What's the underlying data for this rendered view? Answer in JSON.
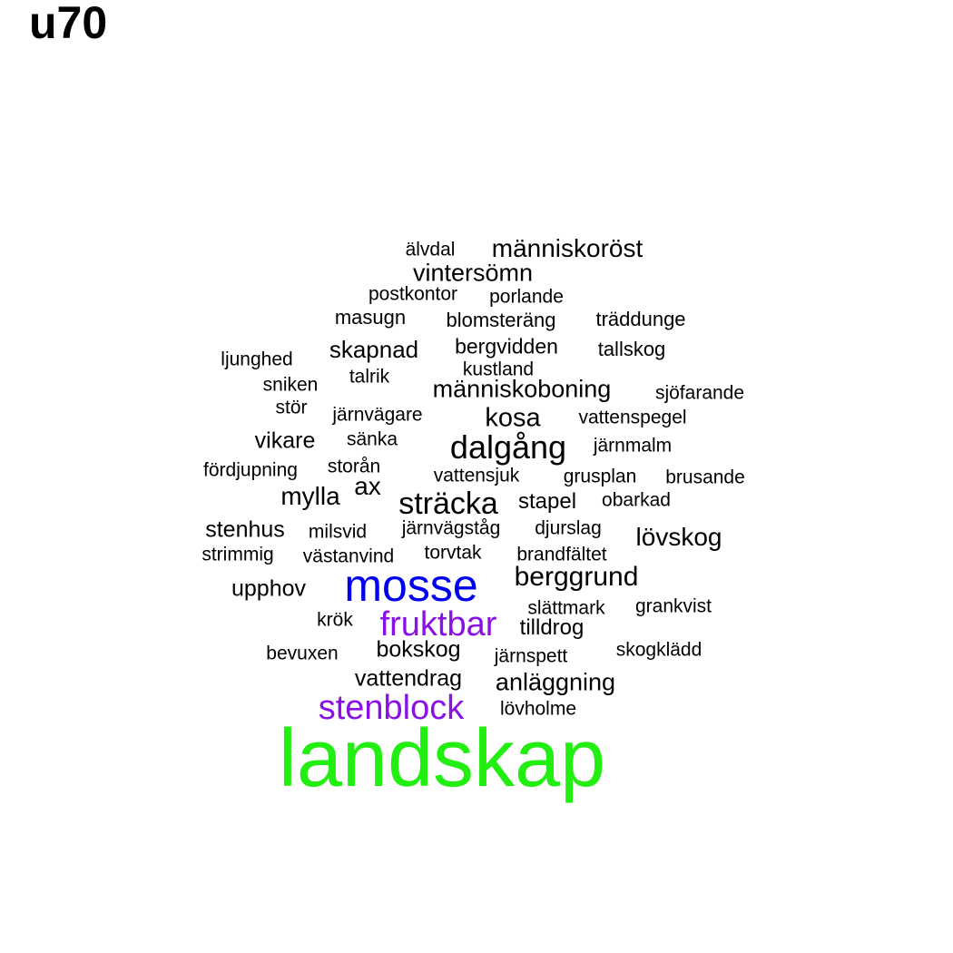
{
  "title": "u70",
  "colors": {
    "default": "#000000",
    "green": "#22ee11",
    "blue": "#0000ee",
    "purple": "#8a11e6"
  },
  "words": [
    {
      "text": "landskap",
      "color": "green"
    },
    {
      "text": "mosse",
      "color": "blue"
    },
    {
      "text": "fruktbar",
      "color": "purple"
    },
    {
      "text": "stenblock",
      "color": "purple"
    },
    {
      "text": "dalgång"
    },
    {
      "text": "sträcka"
    },
    {
      "text": "berggrund"
    },
    {
      "text": "anläggning"
    },
    {
      "text": "mylla"
    },
    {
      "text": "ax"
    },
    {
      "text": "kosa"
    },
    {
      "text": "lövskog"
    },
    {
      "text": "människoröst"
    },
    {
      "text": "vintersömn"
    },
    {
      "text": "skapnad"
    },
    {
      "text": "människoboning"
    },
    {
      "text": "vattendrag"
    },
    {
      "text": "bokskog"
    },
    {
      "text": "stenhus"
    },
    {
      "text": "upphov"
    },
    {
      "text": "vikare"
    },
    {
      "text": "bergvidden"
    },
    {
      "text": "stapel"
    },
    {
      "text": "tilldrog"
    },
    {
      "text": "älvdal"
    },
    {
      "text": "postkontor"
    },
    {
      "text": "porlande"
    },
    {
      "text": "masugn"
    },
    {
      "text": "blomsteräng"
    },
    {
      "text": "träddunge"
    },
    {
      "text": "tallskog"
    },
    {
      "text": "ljunghed"
    },
    {
      "text": "talrik"
    },
    {
      "text": "kustland"
    },
    {
      "text": "sniken"
    },
    {
      "text": "sjöfarande"
    },
    {
      "text": "stör"
    },
    {
      "text": "järnvägare"
    },
    {
      "text": "vattenspegel"
    },
    {
      "text": "sänka"
    },
    {
      "text": "järnmalm"
    },
    {
      "text": "fördjupning"
    },
    {
      "text": "storån"
    },
    {
      "text": "vattensjuk"
    },
    {
      "text": "grusplan"
    },
    {
      "text": "brusande"
    },
    {
      "text": "obarkad"
    },
    {
      "text": "milsvid"
    },
    {
      "text": "järnvägståg"
    },
    {
      "text": "djurslag"
    },
    {
      "text": "strimmig"
    },
    {
      "text": "västanvind"
    },
    {
      "text": "torvtak"
    },
    {
      "text": "brandfältet"
    },
    {
      "text": "slättmark"
    },
    {
      "text": "grankvist"
    },
    {
      "text": "krök"
    },
    {
      "text": "bevuxen"
    },
    {
      "text": "järnspett"
    },
    {
      "text": "skogklädd"
    },
    {
      "text": "lövholme"
    }
  ]
}
